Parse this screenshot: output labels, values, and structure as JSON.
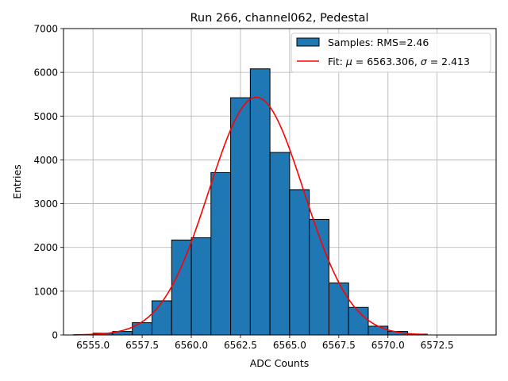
{
  "chart_data": {
    "type": "bar",
    "title": "Run 266, channel062, Pedestal",
    "xlabel": "ADC Counts",
    "ylabel": "Entries",
    "xlim": [
      6553.5,
      6575.5
    ],
    "ylim": [
      0,
      7000
    ],
    "grid": true,
    "legend_position": "top-right",
    "x_ticks": [
      6555.0,
      6557.5,
      6560.0,
      6562.5,
      6565.0,
      6567.5,
      6570.0,
      6572.5
    ],
    "x_tick_labels": [
      "6555.0",
      "6557.5",
      "6560.0",
      "6562.5",
      "6565.0",
      "6567.5",
      "6570.0",
      "6572.5"
    ],
    "y_ticks": [
      0,
      1000,
      2000,
      3000,
      4000,
      5000,
      6000,
      7000
    ],
    "y_tick_labels": [
      "0",
      "1000",
      "2000",
      "3000",
      "4000",
      "5000",
      "6000",
      "7000"
    ],
    "histogram": {
      "name": "Samples: RMS=2.46",
      "color": "#1f77b4",
      "edge_color": "#000000",
      "bin_edges": [
        6555,
        6556,
        6557,
        6558,
        6559,
        6560,
        6561,
        6562,
        6563,
        6564,
        6565,
        6566,
        6567,
        6568,
        6569,
        6570,
        6571,
        6572,
        6573,
        6574
      ],
      "counts": [
        40,
        80,
        280,
        780,
        2170,
        2220,
        3710,
        5420,
        6080,
        4170,
        3320,
        2640,
        1190,
        630,
        200,
        80,
        20,
        0,
        0
      ]
    },
    "fit": {
      "name": "Fit: μ = 6563.306, σ = 2.413",
      "color": "#ff0000",
      "mu": 6563.306,
      "sigma": 2.413,
      "amplitude": 5430,
      "x_range": [
        6554.0,
        6572.0
      ]
    },
    "legend": {
      "entries": [
        {
          "label_prefix": "Samples: RMS=2.46",
          "kind": "patch"
        },
        {
          "label_prefix": "Fit: ",
          "mu_symbol": "μ",
          "mu_text": " = 6563.306, ",
          "sigma_symbol": "σ",
          "sigma_text": " = 2.413",
          "kind": "line"
        }
      ]
    }
  }
}
